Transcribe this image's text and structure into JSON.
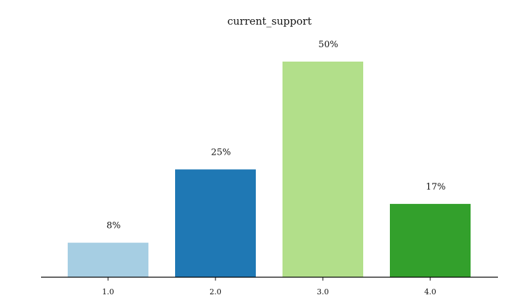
{
  "chart_data": {
    "type": "bar",
    "title": "current_support",
    "xlabel": "",
    "ylabel": "",
    "categories": [
      "1.0",
      "2.0",
      "3.0",
      "4.0"
    ],
    "values": [
      8,
      25,
      50,
      17
    ],
    "value_labels": [
      "8%",
      "25%",
      "50%",
      "17%"
    ],
    "colors": [
      "#a6cee3",
      "#1f78b4",
      "#b2df8a",
      "#33a02c"
    ],
    "ylim": [
      0,
      50
    ],
    "grid": false,
    "legend": "none",
    "y_axis_visible": false
  }
}
